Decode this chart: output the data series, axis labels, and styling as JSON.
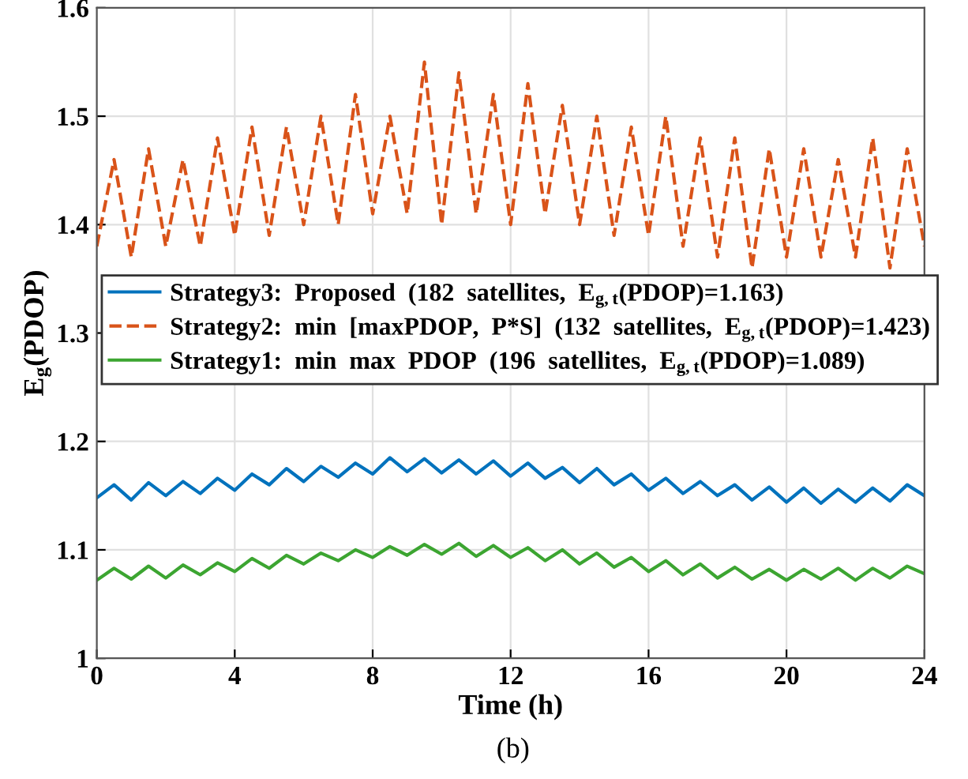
{
  "chart_data": {
    "type": "line",
    "xlabel": "Time (h)",
    "ylabel": "E$_{g}$(PDOP)",
    "x": [
      0,
      0.5,
      1,
      1.5,
      2,
      2.5,
      3,
      3.5,
      4,
      4.5,
      5,
      5.5,
      6,
      6.5,
      7,
      7.5,
      8,
      8.5,
      9,
      9.5,
      10,
      10.5,
      11,
      11.5,
      12,
      12.5,
      13,
      13.5,
      14,
      14.5,
      15,
      15.5,
      16,
      16.5,
      17,
      17.5,
      18,
      18.5,
      19,
      19.5,
      20,
      20.5,
      21,
      21.5,
      22,
      22.5,
      23,
      23.5,
      24
    ],
    "series": [
      {
        "name": "Strategy3:  Proposed  (182  satellites,  E$_{g,t}$(PDOP)=1.163)",
        "color": "#0072bd",
        "line_style": "solid",
        "values": [
          1.148,
          1.16,
          1.146,
          1.162,
          1.15,
          1.163,
          1.152,
          1.166,
          1.155,
          1.17,
          1.16,
          1.175,
          1.163,
          1.177,
          1.167,
          1.18,
          1.17,
          1.185,
          1.172,
          1.184,
          1.171,
          1.183,
          1.17,
          1.182,
          1.168,
          1.18,
          1.166,
          1.176,
          1.162,
          1.175,
          1.16,
          1.17,
          1.155,
          1.166,
          1.152,
          1.163,
          1.15,
          1.16,
          1.146,
          1.158,
          1.144,
          1.157,
          1.143,
          1.156,
          1.144,
          1.157,
          1.145,
          1.16,
          1.15
        ]
      },
      {
        "name": "Strategy2:  min  [maxPDOP,  P*S]  (132  satellites,  E$_{g,t}$(PDOP)=1.423)",
        "color": "#d95319",
        "line_style": "dashed",
        "values": [
          1.38,
          1.46,
          1.37,
          1.47,
          1.38,
          1.46,
          1.38,
          1.48,
          1.39,
          1.49,
          1.39,
          1.49,
          1.4,
          1.5,
          1.4,
          1.52,
          1.41,
          1.5,
          1.41,
          1.55,
          1.4,
          1.54,
          1.41,
          1.52,
          1.4,
          1.53,
          1.41,
          1.51,
          1.4,
          1.5,
          1.39,
          1.49,
          1.39,
          1.5,
          1.38,
          1.48,
          1.37,
          1.48,
          1.36,
          1.47,
          1.37,
          1.47,
          1.37,
          1.46,
          1.37,
          1.48,
          1.36,
          1.47,
          1.38
        ]
      },
      {
        "name": "Strategy1:  min  max  PDOP  (196  satellites,  E$_{g,t}$(PDOP)=1.089)",
        "color": "#3ca531",
        "line_style": "solid",
        "values": [
          1.072,
          1.083,
          1.073,
          1.085,
          1.074,
          1.086,
          1.077,
          1.088,
          1.08,
          1.092,
          1.083,
          1.095,
          1.087,
          1.097,
          1.09,
          1.1,
          1.093,
          1.103,
          1.095,
          1.105,
          1.096,
          1.106,
          1.094,
          1.104,
          1.093,
          1.102,
          1.09,
          1.1,
          1.087,
          1.097,
          1.084,
          1.093,
          1.08,
          1.09,
          1.077,
          1.087,
          1.074,
          1.084,
          1.073,
          1.082,
          1.072,
          1.082,
          1.073,
          1.083,
          1.072,
          1.083,
          1.074,
          1.085,
          1.078
        ]
      }
    ],
    "xlim": [
      0,
      24
    ],
    "xticks": [
      0,
      4,
      8,
      12,
      16,
      20,
      24
    ],
    "ylim": [
      1,
      1.6
    ],
    "yticks": [
      1,
      1.1,
      1.2,
      1.3,
      1.4,
      1.5,
      1.6
    ],
    "grid": true,
    "legend": "left",
    "marker": "none",
    "annotations": [
      "(b)"
    ]
  }
}
